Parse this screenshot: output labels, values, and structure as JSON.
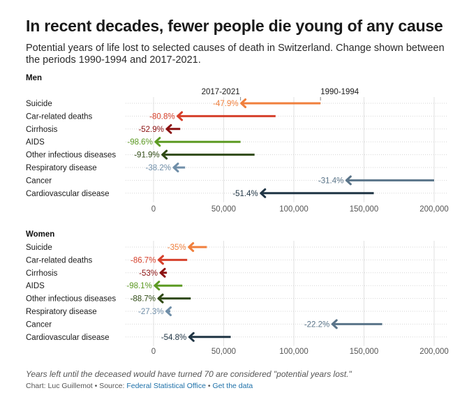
{
  "title": "In recent decades, fewer people die young of any cause",
  "subtitle": "Potential years of life lost to selected causes of death in Switzerland. Change shown between the periods 1990-1994 and 2017-2021.",
  "note": "Years left until the deceased would have turned 70 are considered \"potential years lost.\"",
  "credit": {
    "prefix": "Chart: Luc Guillemot • Source: ",
    "source": "Federal Statistical Office",
    "sep": " • ",
    "data_link": "Get the data"
  },
  "colors": {
    "Suicide": "#f07f3c",
    "Car-related deaths": "#d6402b",
    "Cirrhosis": "#8b1010",
    "AIDS": "#5c9a22",
    "Other infectious diseases": "#2f4a14",
    "Respiratory disease": "#6f8ea8",
    "Cancer": "#5a7489",
    "Cardiovascular disease": "#1f3444"
  },
  "chart_data": [
    {
      "type": "arrow",
      "title": "Men",
      "start_label": "1990-1994",
      "end_label": "2017-2021",
      "xlim": [
        0,
        210000
      ],
      "xticks": [
        0,
        50000,
        100000,
        150000,
        200000
      ],
      "xtick_labels": [
        "0",
        "50,000",
        "100,000",
        "150,000",
        "200,000"
      ],
      "grid": true,
      "rows": [
        {
          "cause": "Suicide",
          "start": 119000,
          "end": 62000,
          "label": "-47.9%"
        },
        {
          "cause": "Car-related deaths",
          "start": 87000,
          "end": 16700,
          "label": "-80.8%"
        },
        {
          "cause": "Cirrhosis",
          "start": 19000,
          "end": 8900,
          "label": "-52.9%"
        },
        {
          "cause": "AIDS",
          "start": 62000,
          "end": 900,
          "label": "-98.6%"
        },
        {
          "cause": "Other infectious diseases",
          "start": 72000,
          "end": 5800,
          "label": "-91.9%"
        },
        {
          "cause": "Respiratory disease",
          "start": 22500,
          "end": 13900,
          "label": "-38.2%"
        },
        {
          "cause": "Cancer",
          "start": 200000,
          "end": 137000,
          "label": "-31.4%"
        },
        {
          "cause": "Cardiovascular disease",
          "start": 157000,
          "end": 76000,
          "label": "-51.4%"
        }
      ]
    },
    {
      "type": "arrow",
      "title": "Women",
      "xlim": [
        0,
        210000
      ],
      "xticks": [
        0,
        50000,
        100000,
        150000,
        200000
      ],
      "xtick_labels": [
        "0",
        "50,000",
        "100,000",
        "150,000",
        "200,000"
      ],
      "grid": true,
      "rows": [
        {
          "cause": "Suicide",
          "start": 38000,
          "end": 24700,
          "label": "-35%"
        },
        {
          "cause": "Car-related deaths",
          "start": 24000,
          "end": 3200,
          "label": "-86.7%"
        },
        {
          "cause": "Cirrhosis",
          "start": 9500,
          "end": 4500,
          "label": "-53%"
        },
        {
          "cause": "AIDS",
          "start": 20500,
          "end": 400,
          "label": "-98.1%"
        },
        {
          "cause": "Other infectious diseases",
          "start": 26500,
          "end": 3000,
          "label": "-88.7%"
        },
        {
          "cause": "Respiratory disease",
          "start": 12000,
          "end": 8700,
          "label": "-27.3%"
        },
        {
          "cause": "Cancer",
          "start": 163000,
          "end": 127000,
          "label": "-22.2%"
        },
        {
          "cause": "Cardiovascular disease",
          "start": 55000,
          "end": 25000,
          "label": "-54.8%"
        }
      ]
    }
  ]
}
